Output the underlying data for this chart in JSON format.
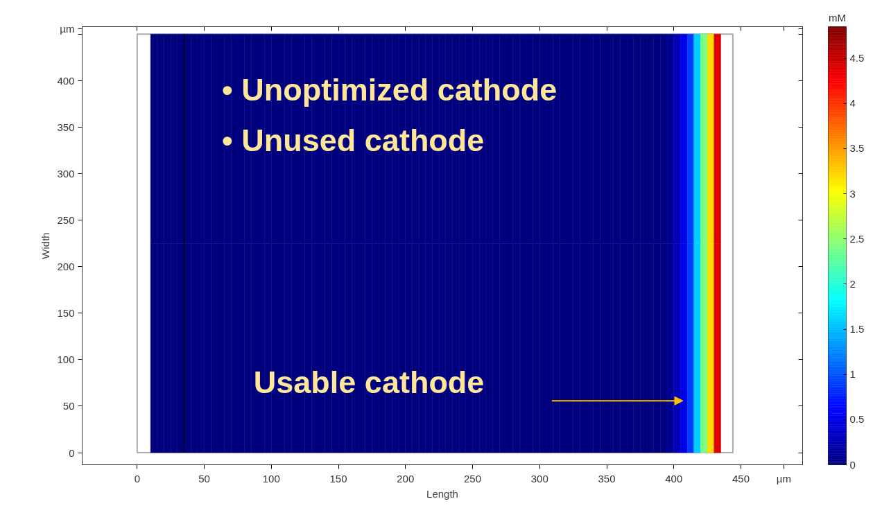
{
  "chart_data": {
    "type": "heatmap",
    "xlabel": "Length",
    "ylabel": "Width",
    "clabel": "mM",
    "x": [
      12.5,
      17.5,
      22.5,
      27.5,
      32.5,
      37.5,
      42.5,
      47.5,
      52.5,
      57.5,
      62.5,
      67.5,
      72.5,
      77.5,
      82.5,
      87.5,
      92.5,
      97.5,
      102.5,
      107.5,
      112.5,
      117.5,
      122.5,
      127.5,
      132.5,
      137.5,
      142.5,
      147.5,
      152.5,
      157.5,
      162.5,
      167.5,
      172.5,
      177.5,
      182.5,
      187.5,
      192.5,
      197.5,
      202.5,
      207.5,
      212.5,
      217.5,
      222.5,
      227.5,
      232.5,
      237.5,
      242.5,
      247.5,
      252.5,
      257.5,
      262.5,
      267.5,
      272.5,
      277.5,
      282.5,
      287.5,
      292.5,
      297.5,
      302.5,
      307.5,
      312.5,
      317.5,
      322.5,
      327.5,
      332.5,
      337.5,
      342.5,
      347.5,
      352.5,
      357.5,
      362.5,
      367.5,
      372.5,
      377.5,
      382.5,
      387.5,
      392.5,
      397.5,
      402.5,
      407.5,
      412.5,
      417.5,
      422.5,
      427.5,
      432.5
    ],
    "y": [
      112.5,
      337.5
    ],
    "cells": [
      [
        0,
        0,
        0,
        0,
        0,
        0,
        0,
        0,
        0,
        0,
        0,
        0,
        0,
        0,
        0,
        0,
        0,
        0,
        0,
        0,
        0,
        0,
        0,
        0,
        0,
        0,
        0,
        0,
        0,
        0,
        0,
        0,
        0,
        0,
        0,
        0,
        0,
        0,
        0,
        0,
        0,
        0,
        0,
        0,
        0,
        0,
        0,
        0,
        0,
        0,
        0,
        0,
        0,
        0,
        0,
        0,
        0,
        0,
        0,
        0,
        0,
        0,
        0,
        0,
        0,
        0,
        0,
        0,
        0,
        0,
        0,
        0,
        0,
        0,
        0,
        0,
        0.02,
        0.1,
        0.25,
        0.5,
        0.9,
        1.6,
        2.4,
        3.2,
        4.4
      ],
      [
        0,
        0,
        0,
        0,
        0,
        0,
        0,
        0,
        0,
        0,
        0,
        0,
        0,
        0,
        0,
        0,
        0,
        0,
        0,
        0,
        0,
        0,
        0,
        0,
        0,
        0,
        0,
        0,
        0,
        0,
        0,
        0,
        0,
        0,
        0,
        0,
        0,
        0,
        0,
        0,
        0,
        0,
        0,
        0,
        0,
        0,
        0,
        0,
        0,
        0,
        0,
        0,
        0,
        0,
        0,
        0,
        0,
        0,
        0,
        0,
        0,
        0,
        0,
        0,
        0,
        0,
        0,
        0,
        0,
        0,
        0,
        0,
        0,
        0,
        0,
        0,
        0.02,
        0.1,
        0.25,
        0.5,
        0.9,
        1.6,
        2.4,
        3.2,
        4.4
      ]
    ],
    "clim": [
      0,
      4.85
    ],
    "cticks": [
      0,
      0.5,
      1,
      1.5,
      2,
      2.5,
      3,
      3.5,
      4,
      4.5
    ],
    "xlim": [
      -41,
      496
    ],
    "ylim": [
      -13,
      458
    ],
    "xticks": [
      0,
      50,
      100,
      150,
      200,
      250,
      300,
      350,
      400,
      450,
      {
        "value": 482,
        "label": "µm"
      }
    ],
    "yticks": [
      0,
      50,
      100,
      150,
      200,
      250,
      300,
      350,
      400,
      {
        "value": 450,
        "label": null
      },
      {
        "value": 456,
        "label": "µm"
      }
    ],
    "bands": [
      {
        "axis": "x",
        "from": 0,
        "to": 444,
        "color": "#ffffff"
      }
    ],
    "ref_lines": [
      {
        "axis": "x",
        "value": 35,
        "color": "#000000"
      }
    ],
    "annotations": [
      "•   Unoptimized cathode",
      "•   Unused cathode",
      "Usable cathode"
    ],
    "grid": false
  }
}
